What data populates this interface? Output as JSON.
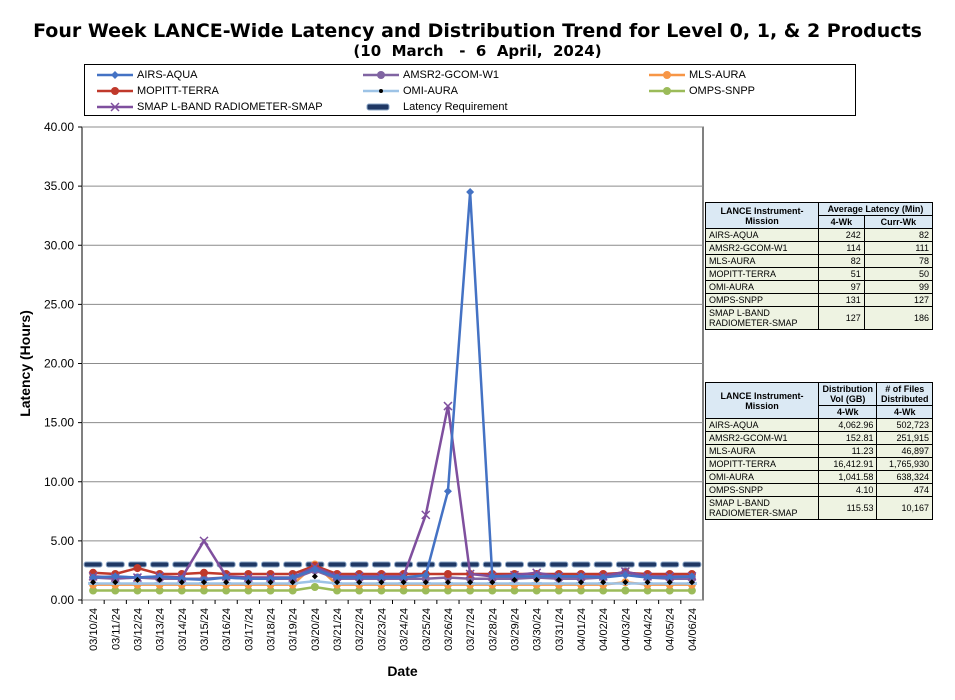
{
  "title": "Four Week LANCE-Wide Latency and Distribution Trend for Level 0, 1, & 2 Products",
  "subtitle": "(10  March   -  6  April,  2024)",
  "colors": {
    "AIRS-AQUA": "#4472c4",
    "AMSR2-GCOM-W1": "#8064a2",
    "MLS-AURA": "#f79646",
    "MOPITT-TERRA": "#c0392b",
    "OMI-AURA": "#9dc3e6",
    "OMPS-SNPP": "#9bbb59",
    "SMAP L-BAND RADIOMETER-SMAP": "#7f4f9e",
    "Latency Requirement": "#1f3864"
  },
  "chart_data": {
    "type": "line",
    "xlabel": "Date",
    "ylabel": "Latency (Hours)",
    "ylim": [
      0,
      40
    ],
    "yticks": [
      "0.00",
      "5.00",
      "10.00",
      "15.00",
      "20.00",
      "25.00",
      "30.00",
      "35.00",
      "40.00"
    ],
    "grid": true,
    "legend_position": "top",
    "categories": [
      "03/10/24",
      "03/11/24",
      "03/12/24",
      "03/13/24",
      "03/14/24",
      "03/15/24",
      "03/16/24",
      "03/17/24",
      "03/18/24",
      "03/19/24",
      "03/20/24",
      "03/21/24",
      "03/22/24",
      "03/23/24",
      "03/24/24",
      "03/25/24",
      "03/26/24",
      "03/27/24",
      "03/28/24",
      "03/29/24",
      "03/30/24",
      "03/31/24",
      "04/01/24",
      "04/02/24",
      "04/03/24",
      "04/04/24",
      "04/05/24",
      "04/06/24"
    ],
    "series": [
      {
        "name": "AIRS-AQUA",
        "marker": "diamond",
        "values": [
          1.9,
          2.0,
          1.9,
          2.0,
          1.8,
          1.7,
          1.9,
          1.8,
          1.8,
          1.9,
          2.6,
          1.9,
          1.9,
          1.9,
          1.9,
          2.1,
          9.2,
          34.5,
          2.0,
          2.0,
          2.0,
          2.0,
          2.0,
          1.9,
          2.1,
          1.9,
          1.9,
          2.0
        ]
      },
      {
        "name": "AMSR2-GCOM-W1",
        "marker": "circle",
        "values": [
          1.9,
          1.8,
          1.9,
          1.8,
          1.8,
          1.8,
          1.9,
          1.8,
          1.8,
          1.8,
          2.5,
          1.8,
          1.8,
          1.8,
          1.8,
          1.8,
          1.9,
          1.8,
          1.8,
          1.8,
          1.9,
          1.8,
          1.8,
          1.9,
          2.4,
          1.9,
          1.8,
          1.8
        ]
      },
      {
        "name": "MLS-AURA",
        "marker": "circle",
        "values": [
          1.3,
          1.3,
          1.3,
          1.3,
          1.3,
          1.3,
          1.3,
          1.3,
          1.3,
          1.3,
          3.0,
          1.3,
          1.3,
          1.3,
          1.3,
          1.3,
          1.3,
          1.3,
          1.3,
          1.3,
          1.3,
          1.3,
          1.3,
          1.3,
          1.5,
          1.3,
          1.3,
          1.3
        ]
      },
      {
        "name": "MOPITT-TERRA",
        "marker": "circle",
        "values": [
          2.3,
          2.2,
          2.7,
          2.2,
          2.2,
          2.3,
          2.2,
          2.2,
          2.2,
          2.2,
          2.9,
          2.2,
          2.2,
          2.2,
          2.2,
          2.2,
          2.2,
          2.2,
          2.2,
          2.2,
          2.2,
          2.2,
          2.2,
          2.2,
          2.3,
          2.2,
          2.2,
          2.2
        ]
      },
      {
        "name": "OMI-AURA",
        "marker": "dash",
        "values": [
          1.4,
          1.4,
          1.4,
          1.4,
          1.4,
          1.4,
          1.4,
          1.4,
          1.4,
          1.4,
          1.6,
          1.4,
          1.4,
          1.4,
          1.4,
          1.4,
          1.4,
          1.4,
          1.4,
          1.4,
          1.4,
          1.4,
          1.4,
          1.4,
          1.4,
          1.4,
          1.4,
          1.4
        ]
      },
      {
        "name": "OMPS-SNPP",
        "marker": "circle",
        "values": [
          0.8,
          0.8,
          0.8,
          0.8,
          0.8,
          0.8,
          0.8,
          0.8,
          0.8,
          0.8,
          1.1,
          0.8,
          0.8,
          0.8,
          0.8,
          0.8,
          0.8,
          0.8,
          0.8,
          0.8,
          0.8,
          0.8,
          0.8,
          0.8,
          0.8,
          0.8,
          0.8,
          0.8
        ]
      },
      {
        "name": "SMAP L-BAND RADIOMETER-SMAP",
        "marker": "x",
        "values": [
          2.0,
          1.9,
          1.9,
          2.0,
          1.9,
          5.0,
          2.0,
          1.9,
          1.9,
          1.9,
          2.8,
          2.0,
          2.0,
          2.0,
          2.0,
          7.2,
          16.4,
          2.2,
          2.0,
          2.1,
          2.3,
          2.0,
          2.0,
          2.0,
          2.4,
          2.0,
          2.0,
          2.0
        ]
      },
      {
        "name": "Latency Requirement",
        "marker": "bar",
        "values": [
          3.0,
          3.0,
          3.0,
          3.0,
          3.0,
          3.0,
          3.0,
          3.0,
          3.0,
          3.0,
          3.0,
          3.0,
          3.0,
          3.0,
          3.0,
          3.0,
          3.0,
          3.0,
          3.0,
          3.0,
          3.0,
          3.0,
          3.0,
          3.0,
          3.0,
          3.0,
          3.0,
          3.0
        ]
      }
    ],
    "extra_black_markers": [
      1.5,
      1.5,
      1.7,
      1.7,
      1.5,
      1.5,
      1.5,
      1.5,
      1.5,
      1.5,
      2.0,
      1.5,
      1.5,
      1.5,
      1.5,
      1.5,
      1.5,
      1.5,
      1.5,
      1.7,
      1.7,
      1.7,
      1.5,
      1.5,
      1.5,
      1.5,
      1.5,
      1.5
    ]
  },
  "latency_table": {
    "h1": "LANCE Instrument-Mission",
    "h2": "Average Latency (Min)",
    "sub1": "4-Wk",
    "sub2": "Curr-Wk",
    "rows": [
      {
        "name": "AIRS-AQUA",
        "a": "242",
        "b": "82"
      },
      {
        "name": "AMSR2-GCOM-W1",
        "a": "114",
        "b": "111"
      },
      {
        "name": "MLS-AURA",
        "a": "82",
        "b": "78"
      },
      {
        "name": "MOPITT-TERRA",
        "a": "51",
        "b": "50"
      },
      {
        "name": "OMI-AURA",
        "a": "97",
        "b": "99"
      },
      {
        "name": "OMPS-SNPP",
        "a": "131",
        "b": "127"
      },
      {
        "name": "SMAP L-BAND RADIOMETER-SMAP",
        "a": "127",
        "b": "186"
      }
    ]
  },
  "distribution_table": {
    "h1": "LANCE Instrument-Mission",
    "h2": "Distribution Vol (GB)",
    "h3": "# of Files Distributed",
    "sub1": "4-Wk",
    "sub2": "4-Wk",
    "rows": [
      {
        "name": "AIRS-AQUA",
        "a": "4,062.96",
        "b": "502,723"
      },
      {
        "name": "AMSR2-GCOM-W1",
        "a": "152.81",
        "b": "251,915"
      },
      {
        "name": "MLS-AURA",
        "a": "11.23",
        "b": "46,897"
      },
      {
        "name": "MOPITT-TERRA",
        "a": "16,412.91",
        "b": "1,765,930"
      },
      {
        "name": "OMI-AURA",
        "a": "1,041.58",
        "b": "638,324"
      },
      {
        "name": "OMPS-SNPP",
        "a": "4.10",
        "b": "474"
      },
      {
        "name": "SMAP L-BAND RADIOMETER-SMAP",
        "a": "115.53",
        "b": "10,167"
      }
    ]
  }
}
